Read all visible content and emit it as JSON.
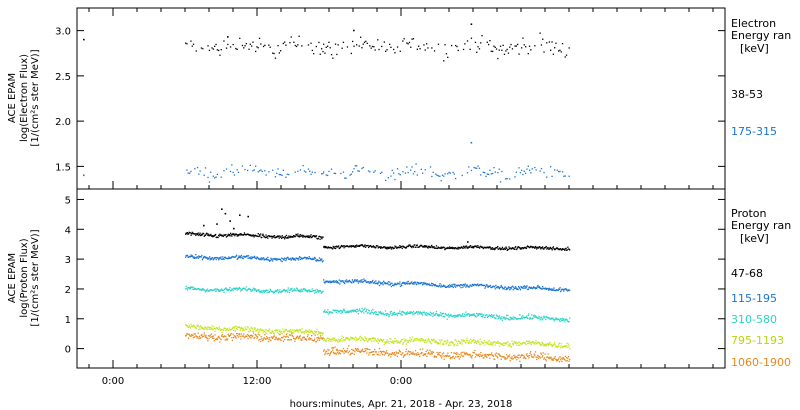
{
  "chart_data": [
    {
      "type": "scatter",
      "panel": "electron",
      "ylabel_lines": [
        "ACE EPAM",
        "log(Electron Flux)",
        "[1/(cm²s ster MeV)]"
      ],
      "yticks": [
        1.5,
        2.0,
        2.5,
        3.0
      ],
      "yrange": [
        1.25,
        3.25
      ],
      "legend_title_lines": [
        "Electron",
        "Energy ran",
        "[keV]"
      ],
      "series": [
        {
          "name": "38-53",
          "color": "#000000",
          "base": 2.83,
          "noise": 0.06,
          "segments": [
            [
              6.0,
              17.5
            ],
            [
              17.5,
              38.0
            ]
          ],
          "extra_points": [
            [
              -2.5,
              2.91
            ],
            [
              29.8,
              3.08
            ],
            [
              20.0,
              3.01
            ],
            [
              9.5,
              2.94
            ]
          ]
        },
        {
          "name": "175-315",
          "color": "#1a74d2",
          "base": 1.44,
          "noise": 0.04,
          "segments": [
            [
              6.0,
              17.5
            ],
            [
              17.5,
              38.0
            ]
          ],
          "extra_points": [
            [
              -2.5,
              1.41
            ],
            [
              29.8,
              1.77
            ]
          ]
        }
      ]
    },
    {
      "type": "scatter",
      "panel": "proton",
      "ylabel_lines": [
        "ACE EPAM",
        "log(Proton Flux)",
        "[1/(cm²s ster MeV)]"
      ],
      "yticks": [
        0,
        1,
        2,
        3,
        4,
        5
      ],
      "yrange": [
        -0.65,
        5.35
      ],
      "legend_title_lines": [
        "Proton",
        "Energy ran",
        "[keV]"
      ],
      "series": [
        {
          "name": "47-68",
          "color": "#000000",
          "segments": [
            [
              6.0,
              17.5,
              3.85,
              3.75,
              0.04
            ],
            [
              17.5,
              38.0,
              3.45,
              3.38,
              0.03
            ]
          ],
          "extra_points": [
            [
              9.0,
              4.7
            ],
            [
              9.3,
              4.55
            ],
            [
              9.7,
              4.3
            ],
            [
              8.6,
              4.2
            ],
            [
              10.5,
              4.5
            ],
            [
              11.2,
              4.45
            ],
            [
              7.5,
              4.15
            ],
            [
              10.0,
              4.05
            ],
            [
              29.5,
              3.6
            ]
          ]
        },
        {
          "name": "115-195",
          "color": "#1a74d2",
          "segments": [
            [
              6.0,
              17.5,
              3.1,
              3.0,
              0.04
            ],
            [
              17.5,
              38.0,
              2.3,
              2.0,
              0.04
            ]
          ],
          "extra_points": []
        },
        {
          "name": "310-580",
          "color": "#2ad3c7",
          "segments": [
            [
              6.0,
              17.5,
              2.02,
              1.95,
              0.04
            ],
            [
              17.5,
              38.0,
              1.3,
              1.0,
              0.05
            ]
          ],
          "extra_points": []
        },
        {
          "name": "795-1193",
          "color": "#c2e61e",
          "segments": [
            [
              6.0,
              17.5,
              0.75,
              0.55,
              0.05
            ],
            [
              17.5,
              38.0,
              0.35,
              0.15,
              0.06
            ]
          ],
          "extra_points": []
        },
        {
          "name": "1060-1900",
          "color": "#e8891e",
          "segments": [
            [
              6.0,
              17.5,
              0.45,
              0.35,
              0.07
            ],
            [
              17.5,
              38.0,
              -0.05,
              -0.3,
              0.08
            ]
          ],
          "extra_points": [
            [
              18.3,
              0.05
            ],
            [
              18.6,
              0.0
            ]
          ]
        }
      ]
    }
  ],
  "x_axis": {
    "xlabel": "hours:minutes, Apr. 21, 2018 - Apr. 23, 2018",
    "xrange_hours": [
      -3.0,
      51.0
    ],
    "major_ticks_hours": [
      0,
      12,
      24
    ],
    "major_tick_labels": [
      "0:00",
      "12:00",
      "0:00"
    ],
    "minor_tick_step_hours": 2
  }
}
